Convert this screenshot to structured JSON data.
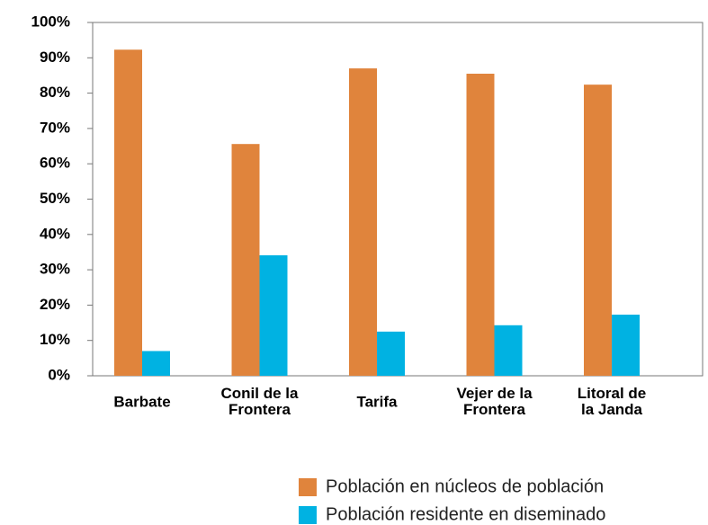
{
  "chart_data": {
    "type": "bar",
    "categories": [
      "Barbate",
      "Conil de la\nFrontera",
      "Tarifa",
      "Vejer de la\nFrontera",
      "Litoral de\nla Janda"
    ],
    "series": [
      {
        "name": "Población en núcleos de población",
        "color": "#e0843c",
        "values": [
          92.3,
          65.6,
          87,
          85.5,
          82.4
        ]
      },
      {
        "name": "Población residente en diseminado",
        "color": "#00b2e2",
        "values": [
          7,
          34.1,
          12.5,
          14.3,
          17.3
        ]
      }
    ],
    "ylim": [
      0,
      100
    ],
    "yticks": [
      {
        "value": 0,
        "label": "0%"
      },
      {
        "value": 10,
        "label": "10%"
      },
      {
        "value": 20,
        "label": "20%"
      },
      {
        "value": 30,
        "label": "30%"
      },
      {
        "value": 40,
        "label": "40%"
      },
      {
        "value": 50,
        "label": "50%"
      },
      {
        "value": 60,
        "label": "60%"
      },
      {
        "value": 70,
        "label": "70%"
      },
      {
        "value": 80,
        "label": "80%"
      },
      {
        "value": 90,
        "label": "90%"
      },
      {
        "value": 100,
        "label": "100%"
      }
    ],
    "grid": false,
    "legend": "lower right"
  }
}
